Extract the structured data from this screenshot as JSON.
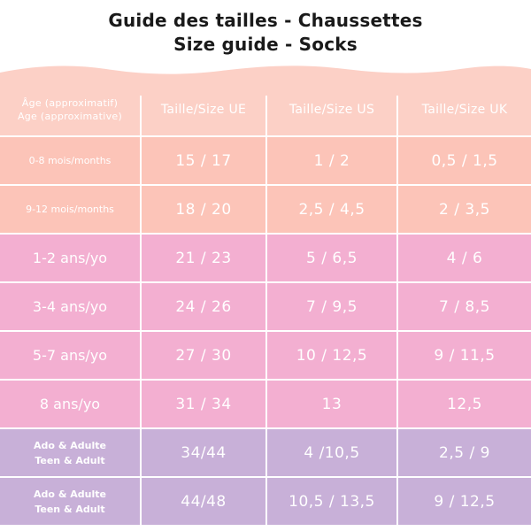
{
  "title": {
    "line1": "Guide des tailles - Chaussettes",
    "line2": "Size guide - Socks"
  },
  "header": {
    "age_fr": "Âge (approximatif)",
    "age_en": "Age (approximative)",
    "eu": "Taille/Size UE",
    "us": "Taille/Size US",
    "uk": "Taille/Size UK"
  },
  "rows": [
    {
      "age": "0-8 mois/months",
      "eu": "15 / 17",
      "us": "1 / 2",
      "uk": "0,5 / 1,5"
    },
    {
      "age": "9-12 mois/months",
      "eu": "18 / 20",
      "us": "2,5 / 4,5",
      "uk": "2 / 3,5"
    },
    {
      "age": "1-2 ans/yo",
      "eu": "21 / 23",
      "us": "5 / 6,5",
      "uk": "4 / 6"
    },
    {
      "age": "3-4 ans/yo",
      "eu": "24 / 26",
      "us": "7 / 9,5",
      "uk": "7 / 8,5"
    },
    {
      "age": "5-7 ans/yo",
      "eu": "27 / 30",
      "us": "10 / 12,5",
      "uk": "9 / 11,5"
    },
    {
      "age": "8 ans/yo",
      "eu": "31 / 34",
      "us": "13",
      "uk": "12,5"
    },
    {
      "age_fr": "Ado & Adulte",
      "age_en": "Teen & Adult",
      "eu": "34/44",
      "us": "4 /10,5",
      "uk": "2,5 / 9"
    },
    {
      "age_fr": "Ado & Adulte",
      "age_en": "Teen & Adult",
      "eu": "44/48",
      "us": "10,5 / 13,5",
      "uk": "9 / 12,5"
    }
  ],
  "colors": {
    "header": "#fcd0c6",
    "baby": "#fcc4b8",
    "child": "#f3afd1",
    "adult": "#c8b0d8"
  }
}
